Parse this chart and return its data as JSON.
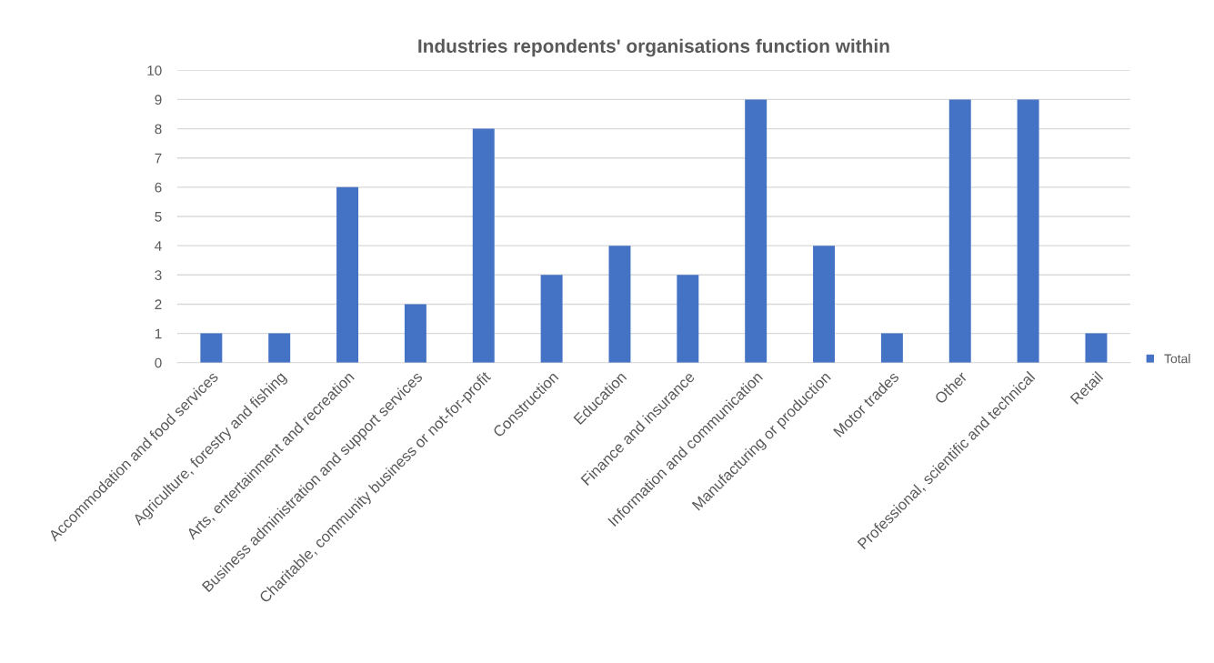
{
  "chart_data": {
    "type": "bar",
    "title": "Industries repondents' organisations function within",
    "categories": [
      "Accommodation and food services",
      "Agriculture, forestry and fishing",
      "Arts, entertainment and recreation",
      "Business administration and support services",
      "Charitable, community business or not-for-profit",
      "Construction",
      "Education",
      "Finance and insurance",
      "Information and communication",
      "Manufacturing or production",
      "Motor trades",
      "Other",
      "Professional, scientific and technical",
      "Retail"
    ],
    "series": [
      {
        "name": "Total",
        "color": "#4472c4",
        "values": [
          1,
          1,
          6,
          2,
          8,
          3,
          4,
          3,
          9,
          4,
          1,
          9,
          9,
          1
        ]
      }
    ],
    "ylim": [
      0,
      10
    ],
    "yticks": [
      0,
      1,
      2,
      3,
      4,
      5,
      6,
      7,
      8,
      9,
      10
    ],
    "grid": "y",
    "legend": "right"
  }
}
